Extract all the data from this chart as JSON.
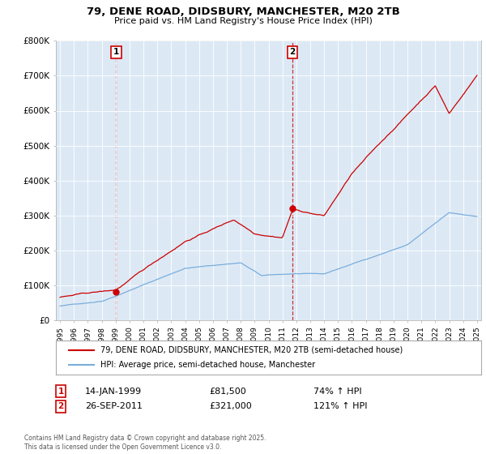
{
  "title": "79, DENE ROAD, DIDSBURY, MANCHESTER, M20 2TB",
  "subtitle": "Price paid vs. HM Land Registry's House Price Index (HPI)",
  "legend_line1": "79, DENE ROAD, DIDSBURY, MANCHESTER, M20 2TB (semi-detached house)",
  "legend_line2": "HPI: Average price, semi-detached house, Manchester",
  "footer": "Contains HM Land Registry data © Crown copyright and database right 2025.\nThis data is licensed under the Open Government Licence v3.0.",
  "ann1_date": "14-JAN-1999",
  "ann1_price": "£81,500",
  "ann1_hpi": "74% ↑ HPI",
  "ann2_date": "26-SEP-2011",
  "ann2_price": "£321,000",
  "ann2_hpi": "121% ↑ HPI",
  "red_color": "#cc0000",
  "blue_color": "#7aaddb",
  "bg_color": "#ffffff",
  "chart_bg": "#dce9f5",
  "grid_color": "#ffffff",
  "ylim": [
    0,
    800000
  ],
  "yticks": [
    0,
    100000,
    200000,
    300000,
    400000,
    500000,
    600000,
    700000,
    800000
  ],
  "ytick_labels": [
    "£0",
    "£100K",
    "£200K",
    "£300K",
    "£400K",
    "£500K",
    "£600K",
    "£700K",
    "£800K"
  ],
  "xlim_start": 1994.7,
  "xlim_end": 2025.3,
  "purchase1_x": 1999.04,
  "purchase1_y": 81500,
  "purchase2_x": 2011.73,
  "purchase2_y": 321000
}
